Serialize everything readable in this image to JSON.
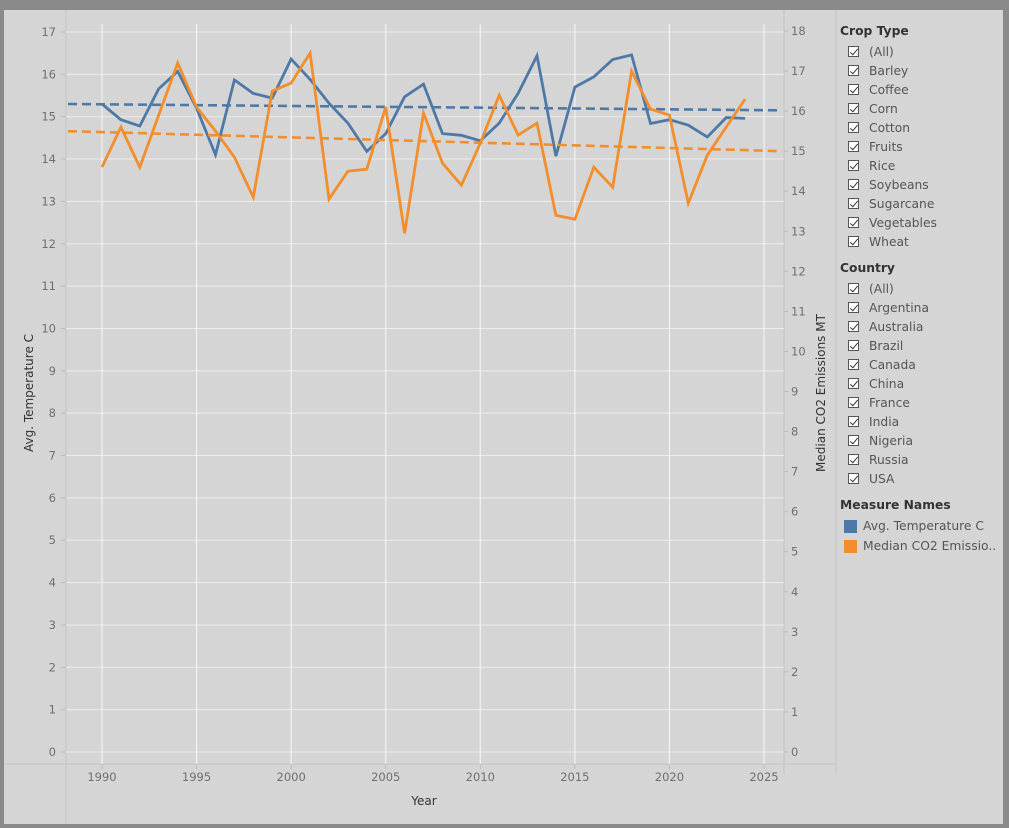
{
  "chart_data": {
    "type": "line",
    "xlabel": "Year",
    "ylabel_left": "Avg. Temperature C",
    "ylabel_right": "Median CO2 Emissions MT",
    "xlim": [
      1988,
      2026
    ],
    "xticks": [
      1990,
      1995,
      2000,
      2005,
      2010,
      2015,
      2020,
      2025
    ],
    "ylim_left": [
      0,
      17
    ],
    "yticks_left": [
      0,
      1,
      2,
      3,
      4,
      5,
      6,
      7,
      8,
      9,
      10,
      11,
      12,
      13,
      14,
      15,
      16,
      17
    ],
    "ylim_right": [
      0,
      18
    ],
    "yticks_right": [
      0,
      1,
      2,
      3,
      4,
      5,
      6,
      7,
      8,
      9,
      10,
      11,
      12,
      13,
      14,
      15,
      16,
      17,
      18
    ],
    "grid": true,
    "x": [
      1990,
      1991,
      1992,
      1993,
      1994,
      1995,
      1996,
      1997,
      1998,
      1999,
      2000,
      2001,
      2002,
      2003,
      2004,
      2005,
      2006,
      2007,
      2008,
      2009,
      2010,
      2011,
      2012,
      2013,
      2014,
      2015,
      2016,
      2017,
      2018,
      2019,
      2020,
      2021,
      2022,
      2023,
      2024
    ],
    "series": [
      {
        "name": "Avg. Temperature C",
        "axis": "left",
        "color": "#4e79a7",
        "values": [
          15.3,
          14.93,
          14.78,
          15.66,
          16.07,
          15.2,
          14.1,
          15.87,
          15.55,
          15.44,
          16.36,
          15.88,
          15.32,
          14.85,
          14.18,
          14.6,
          15.47,
          15.77,
          14.6,
          14.56,
          14.43,
          14.85,
          15.55,
          16.44,
          14.07,
          15.7,
          15.94,
          16.35,
          16.46,
          14.84,
          14.93,
          14.8,
          14.52,
          14.98,
          14.96
        ],
        "trend": [
          15.3,
          15.15
        ]
      },
      {
        "name": "Median CO2 Emissions MT",
        "axis": "right",
        "color": "#f28e2b",
        "values": [
          14.6,
          15.6,
          14.6,
          15.9,
          17.2,
          16.1,
          15.5,
          14.85,
          13.85,
          16.5,
          16.7,
          17.45,
          13.8,
          14.5,
          14.55,
          16.1,
          12.95,
          15.95,
          14.7,
          14.15,
          15.2,
          16.4,
          15.4,
          15.7,
          13.4,
          13.3,
          14.6,
          14.1,
          17.0,
          16.05,
          15.9,
          13.7,
          14.9,
          15.6,
          16.3
        ],
        "trend": [
          15.5,
          15.0
        ]
      }
    ]
  },
  "filters": {
    "crop_type": {
      "title": "Crop Type",
      "items": [
        "(All)",
        "Barley",
        "Coffee",
        "Corn",
        "Cotton",
        "Fruits",
        "Rice",
        "Soybeans",
        "Sugarcane",
        "Vegetables",
        "Wheat"
      ]
    },
    "country": {
      "title": "Country",
      "items": [
        "(All)",
        "Argentina",
        "Australia",
        "Brazil",
        "Canada",
        "China",
        "France",
        "India",
        "Nigeria",
        "Russia",
        "USA"
      ]
    }
  },
  "legend": {
    "title": "Measure Names",
    "items": [
      {
        "label": "Avg. Temperature C",
        "color": "#4e79a7"
      },
      {
        "label": "Median CO2 Emissio..",
        "color": "#f28e2b"
      }
    ]
  }
}
